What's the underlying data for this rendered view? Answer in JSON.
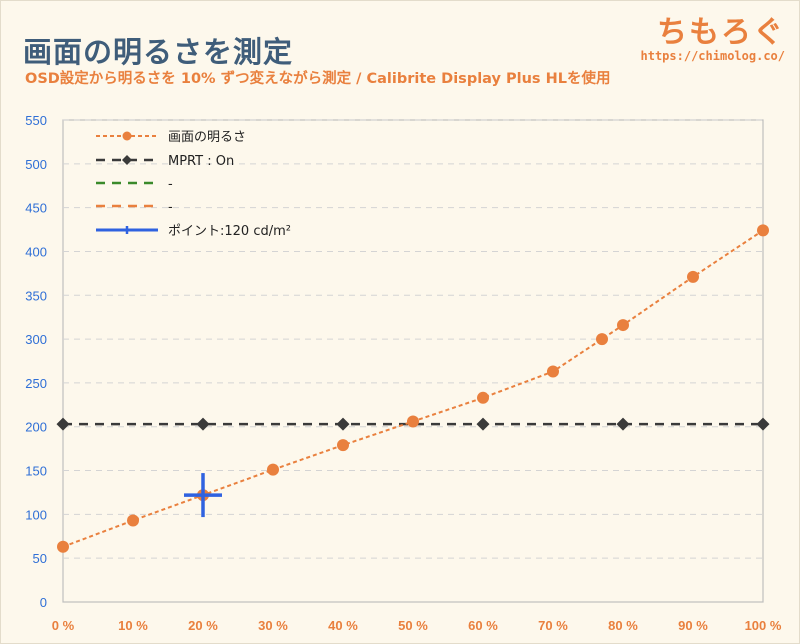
{
  "header": {
    "title": "画面の明るさを測定",
    "subtitle": "OSD設定から明るさを 10% ずつ変えながら測定 / Calibrite Display Plus HLを使用",
    "brand_name": "ちもろぐ",
    "brand_url": "https://chimolog.co/"
  },
  "chart_data": {
    "type": "line",
    "title": "画面の明るさを測定",
    "subtitle": "OSD設定から明るさを 10% ずつ変えながら測定 / Calibrite Display Plus HLを使用",
    "xlabel": "",
    "ylabel": "",
    "xlim": [
      0,
      100
    ],
    "ylim": [
      0,
      550
    ],
    "y_ticks": [
      0,
      50,
      100,
      150,
      200,
      250,
      300,
      350,
      400,
      450,
      500,
      550
    ],
    "x_ticks": [
      0,
      10,
      20,
      30,
      40,
      50,
      60,
      70,
      80,
      90,
      100
    ],
    "x_tick_labels": [
      "0 %",
      "10 %",
      "20 %",
      "30 %",
      "40 %",
      "50 %",
      "60 %",
      "70 %",
      "80 %",
      "90 %",
      "100 %"
    ],
    "grid": "horizontal dashed",
    "legend_position": "top-left",
    "series": [
      {
        "name": "画面の明るさ",
        "color": "#e9803e",
        "style": "dotted line with circle markers",
        "x": [
          0,
          10,
          20,
          30,
          40,
          50,
          60,
          70,
          77,
          80,
          90,
          100
        ],
        "y": [
          63,
          93,
          122,
          151,
          179,
          206,
          233,
          263,
          300,
          316,
          371,
          424
        ]
      },
      {
        "name": "MPRT : On",
        "color": "#3a3a3a",
        "style": "dashed line with diamond markers",
        "x": [
          0,
          20,
          40,
          60,
          80,
          100
        ],
        "y": [
          203,
          203,
          203,
          203,
          203,
          203
        ]
      },
      {
        "name": "-",
        "color": "#3a8a2a",
        "style": "dashed line",
        "x": [],
        "y": []
      },
      {
        "name": "-",
        "color": "#e9803e",
        "style": "dashed line",
        "x": [],
        "y": []
      },
      {
        "name": "ポイント:120 cd/m²",
        "color": "#2f62e0",
        "style": "cross marker",
        "x": [
          20
        ],
        "y": [
          122
        ]
      }
    ]
  }
}
